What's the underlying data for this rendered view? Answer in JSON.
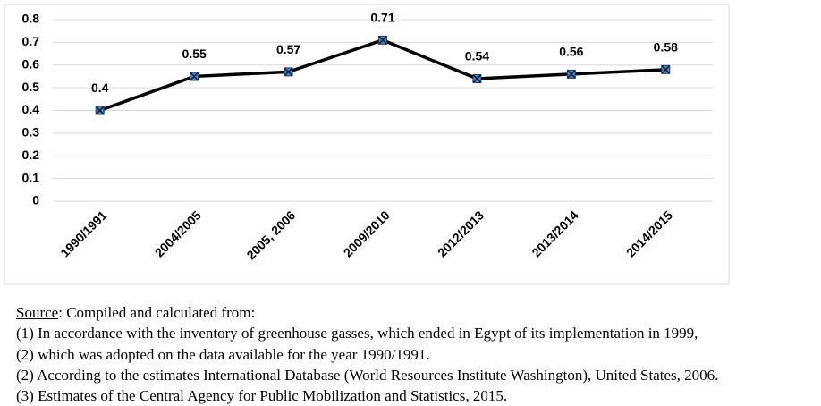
{
  "chart_data": {
    "type": "line",
    "categories": [
      "1990/1991",
      "2004/2005",
      "2005, 2006",
      "2009/2010",
      "2012/2013",
      "2013/2014",
      "2014/2015"
    ],
    "values": [
      0.4,
      0.55,
      0.57,
      0.71,
      0.54,
      0.56,
      0.58
    ],
    "color": "#000000",
    "marker_color": "#4f81bd",
    "ylim": [
      0,
      0.8
    ],
    "yticks": [
      0,
      0.1,
      0.2,
      0.3,
      0.4,
      0.5,
      0.6,
      0.7,
      0.8
    ],
    "grid": true
  },
  "notes": {
    "source": "Source",
    "source_text": ": Compiled and calculated from:",
    "items": [
      "(1)  In accordance with the inventory of greenhouse gasses, which ended in Egypt of its implementation in 1999,",
      "(2)  which was adopted on the data available for the year 1990/1991.",
      "(2)  According to the estimates International Database (World Resources Institute Washington), United States, 2006.",
      "(3)  Estimates of the Central Agency for Public Mobilization and Statistics, 2015."
    ]
  }
}
